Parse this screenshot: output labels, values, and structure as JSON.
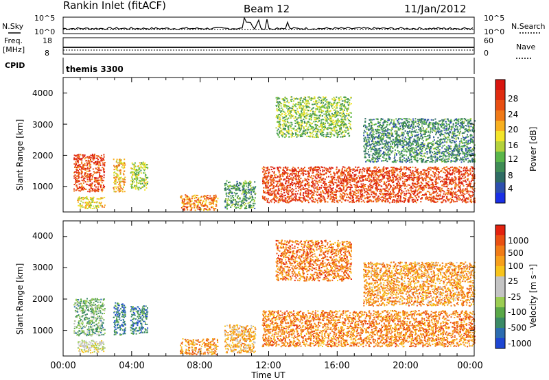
{
  "header": {
    "title": "Rankin Inlet (fitACF)",
    "beam": "Beam 12",
    "date": "11/Jan/2012"
  },
  "noise_panel": {
    "left_label": "N.Sky",
    "right_label": "N.Search",
    "left_ticks": [
      "10^5",
      "10^0"
    ],
    "right_ticks": [
      "10^5",
      "10^0"
    ]
  },
  "freq_panel": {
    "left_label_1": "Freq.",
    "left_label_2": "[MHz]",
    "right_label": "Nave",
    "left_ticks": [
      "18",
      "8"
    ],
    "right_ticks": [
      "60",
      "0"
    ]
  },
  "cpid_panel": {
    "label": "CPID",
    "value": "themis 3300"
  },
  "x_axis": {
    "title": "Time UT",
    "ticks": [
      "00:00",
      "04:00",
      "08:00",
      "12:00",
      "16:00",
      "20:00",
      "00:00"
    ]
  },
  "chart_data": [
    {
      "type": "heatmap",
      "name": "power",
      "xlabel": "Time UT",
      "ylabel": "Slant Range [km]",
      "xlim_hours": [
        0,
        24
      ],
      "ylim_km": [
        180,
        4500
      ],
      "yticks": [
        "1000",
        "2000",
        "3000",
        "4000"
      ],
      "colorbar": {
        "label": "Power [dB]",
        "ticks": [
          "4",
          "8",
          "12",
          "16",
          "20",
          "24",
          "28"
        ],
        "colors": [
          "#1a2fe6",
          "#2d4fae",
          "#2f6c64",
          "#3f8c56",
          "#5ab64a",
          "#b4d23c",
          "#f3e52a",
          "#f8b020",
          "#f07a18",
          "#e84e12",
          "#e02c10",
          "#d8150f"
        ]
      },
      "echo_regions": [
        {
          "t": [
            0.6,
            2.4
          ],
          "r": [
            850,
            2050
          ],
          "level": 0.85
        },
        {
          "t": [
            0.8,
            2.4
          ],
          "r": [
            300,
            700
          ],
          "level": 0.55
        },
        {
          "t": [
            2.9,
            3.6
          ],
          "r": [
            850,
            1900
          ],
          "level": 0.6
        },
        {
          "t": [
            3.9,
            4.9
          ],
          "r": [
            900,
            1800
          ],
          "level": 0.45
        },
        {
          "t": [
            6.8,
            9.0
          ],
          "r": [
            250,
            750
          ],
          "level": 0.72
        },
        {
          "t": [
            9.4,
            11.2
          ],
          "r": [
            300,
            1200
          ],
          "level": 0.3
        },
        {
          "t": [
            11.6,
            24.0
          ],
          "r": [
            500,
            1650
          ],
          "level": 0.85
        },
        {
          "t": [
            12.4,
            16.8
          ],
          "r": [
            2600,
            3900
          ],
          "level": 0.4
        },
        {
          "t": [
            17.5,
            24.0
          ],
          "r": [
            1800,
            3200
          ],
          "level": 0.25
        }
      ]
    },
    {
      "type": "heatmap",
      "name": "velocity",
      "xlabel": "Time UT",
      "ylabel": "Slant Range [km]",
      "xlim_hours": [
        0,
        24
      ],
      "ylim_km": [
        180,
        4500
      ],
      "yticks": [
        "1000",
        "2000",
        "3000",
        "4000"
      ],
      "colorbar": {
        "label": "Velocity [m s⁻¹]",
        "ticks": [
          "1000",
          "500",
          "100",
          "25",
          "-25",
          "-100",
          "-500",
          "-1000"
        ],
        "colors": [
          "#1e46d2",
          "#2c6cb0",
          "#3b8a66",
          "#5aa848",
          "#9bcd52",
          "#c4c4c4",
          "#c4c4c4",
          "#f8c41c",
          "#f7a01c",
          "#f17c17",
          "#ea5012",
          "#e3220f"
        ]
      },
      "echo_regions": [
        {
          "t": [
            0.6,
            2.4
          ],
          "r": [
            850,
            2050
          ],
          "level": 0.3
        },
        {
          "t": [
            0.8,
            2.4
          ],
          "r": [
            300,
            700
          ],
          "level": 0.5
        },
        {
          "t": [
            2.9,
            3.6
          ],
          "r": [
            850,
            1900
          ],
          "level": 0.15
        },
        {
          "t": [
            3.9,
            4.9
          ],
          "r": [
            900,
            1800
          ],
          "level": 0.15
        },
        {
          "t": [
            6.8,
            9.0
          ],
          "r": [
            250,
            750
          ],
          "level": 0.75
        },
        {
          "t": [
            9.4,
            11.2
          ],
          "r": [
            300,
            1200
          ],
          "level": 0.7
        },
        {
          "t": [
            11.6,
            24.0
          ],
          "r": [
            500,
            1650
          ],
          "level": 0.8
        },
        {
          "t": [
            12.4,
            16.8
          ],
          "r": [
            2600,
            3900
          ],
          "level": 0.82
        },
        {
          "t": [
            17.5,
            24.0
          ],
          "r": [
            1800,
            3200
          ],
          "level": 0.75
        }
      ]
    }
  ]
}
